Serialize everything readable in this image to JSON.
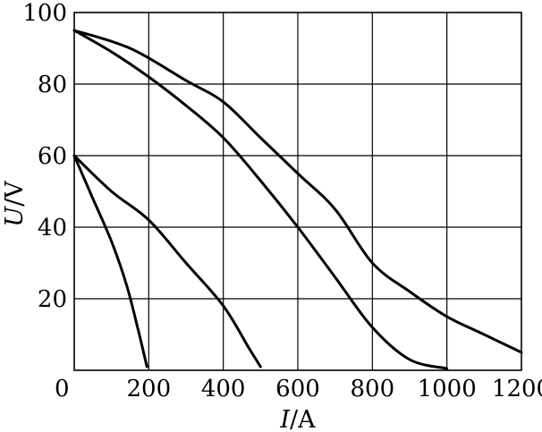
{
  "chart_data": {
    "type": "line",
    "title": "",
    "xlabel": {
      "var": "I",
      "unit": "/A"
    },
    "ylabel": {
      "var": "U",
      "unit": "/V"
    },
    "xlim": [
      0,
      1200
    ],
    "ylim": [
      0,
      100
    ],
    "x_ticks": [
      0,
      200,
      400,
      600,
      800,
      1000,
      1200
    ],
    "y_ticks": [
      20,
      40,
      60,
      80,
      100
    ],
    "x_tick_labels": [
      "0",
      "200",
      "400",
      "600",
      "800",
      "1000",
      "1200"
    ],
    "y_tick_labels": [
      "20",
      "40",
      "60",
      "80",
      "100"
    ],
    "grid": true,
    "legend": "none",
    "series": [
      {
        "points": [
          [
            0,
            60
          ],
          [
            50,
            48
          ],
          [
            100,
            36
          ],
          [
            140,
            24
          ],
          [
            170,
            12
          ],
          [
            195,
            1
          ]
        ]
      },
      {
        "points": [
          [
            0,
            60
          ],
          [
            100,
            50
          ],
          [
            200,
            42
          ],
          [
            300,
            30
          ],
          [
            400,
            18
          ],
          [
            470,
            6
          ],
          [
            500,
            1
          ]
        ]
      },
      {
        "points": [
          [
            0,
            95
          ],
          [
            100,
            89
          ],
          [
            200,
            82
          ],
          [
            300,
            74
          ],
          [
            400,
            65
          ],
          [
            500,
            53
          ],
          [
            600,
            40
          ],
          [
            700,
            26
          ],
          [
            800,
            12
          ],
          [
            900,
            3
          ],
          [
            1000,
            0.5
          ]
        ]
      },
      {
        "points": [
          [
            0,
            95
          ],
          [
            150,
            90
          ],
          [
            300,
            81
          ],
          [
            400,
            75
          ],
          [
            500,
            65
          ],
          [
            600,
            55
          ],
          [
            700,
            45
          ],
          [
            800,
            30
          ],
          [
            900,
            22
          ],
          [
            1000,
            15
          ],
          [
            1100,
            10
          ],
          [
            1200,
            5
          ]
        ]
      }
    ]
  }
}
